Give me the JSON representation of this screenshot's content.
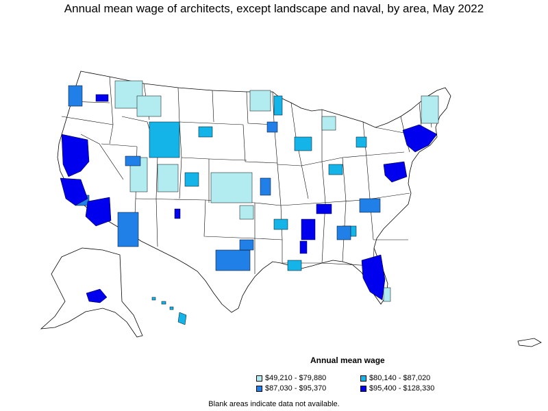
{
  "title": "Annual mean wage of architects, except landscape and naval, by area, May 2022",
  "legend": {
    "title": "Annual mean wage",
    "items": [
      {
        "label": "$49,210 - $79,880",
        "color": "#b3ecf0"
      },
      {
        "label": "$80,140 - $87,020",
        "color": "#14b4e8"
      },
      {
        "label": "$87,030 - $95,370",
        "color": "#2080e8"
      },
      {
        "label": "$95,400 - $128,330",
        "color": "#0000ee"
      }
    ]
  },
  "footnote": "Blank areas indicate data not available.",
  "colors": {
    "no_data": "#ffffff",
    "border": "#000000"
  }
}
